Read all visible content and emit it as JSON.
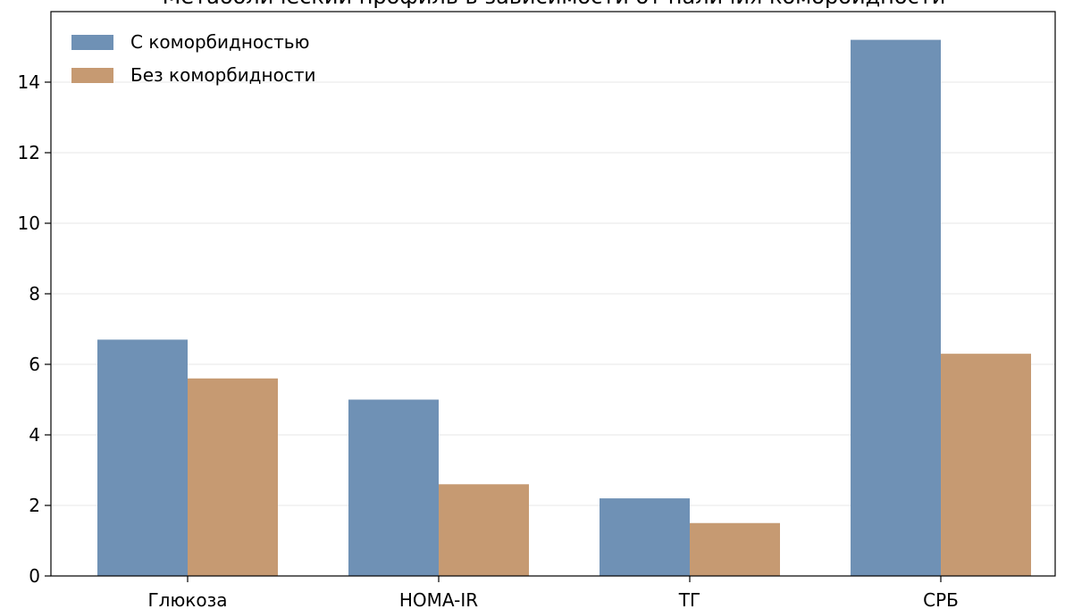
{
  "chart_data": {
    "type": "bar",
    "title": "Метаболический профиль в зависимости от наличия коморбидности",
    "categories": [
      "Глюкоза",
      "HOMA-IR",
      "ТГ",
      "СРБ"
    ],
    "series": [
      {
        "name": "С коморбидностью",
        "color": "#6f91b5",
        "values": [
          6.7,
          5.0,
          2.2,
          15.2
        ]
      },
      {
        "name": "Без коморбидности",
        "color": "#c69a72",
        "values": [
          5.6,
          2.6,
          1.5,
          6.3
        ]
      }
    ],
    "ylim": [
      0,
      16
    ],
    "yticks": [
      0,
      2,
      4,
      6,
      8,
      10,
      12,
      14
    ],
    "grid": true,
    "legend": "upper left"
  }
}
